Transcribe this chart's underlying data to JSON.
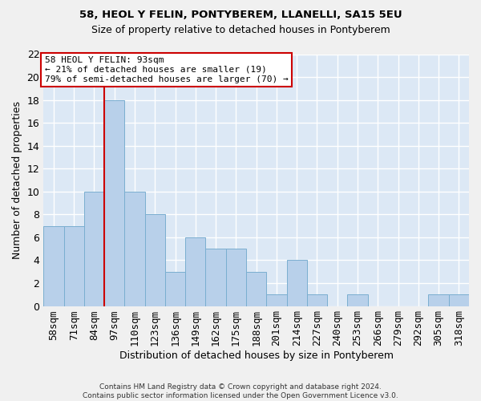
{
  "title1": "58, HEOL Y FELIN, PONTYBEREM, LLANELLI, SA15 5EU",
  "title2": "Size of property relative to detached houses in Pontyberem",
  "xlabel": "Distribution of detached houses by size in Pontyberem",
  "ylabel": "Number of detached properties",
  "categories": [
    "58sqm",
    "71sqm",
    "84sqm",
    "97sqm",
    "110sqm",
    "123sqm",
    "136sqm",
    "149sqm",
    "162sqm",
    "175sqm",
    "188sqm",
    "201sqm",
    "214sqm",
    "227sqm",
    "240sqm",
    "253sqm",
    "266sqm",
    "279sqm",
    "292sqm",
    "305sqm",
    "318sqm"
  ],
  "values": [
    7,
    7,
    10,
    18,
    10,
    8,
    3,
    6,
    5,
    5,
    3,
    1,
    4,
    1,
    0,
    1,
    0,
    0,
    0,
    1,
    1
  ],
  "bar_color": "#b8d0ea",
  "bar_edge_color": "#7aaed0",
  "vline_index": 2.5,
  "vline_color": "#cc0000",
  "annotation_line1": "58 HEOL Y FELIN: 93sqm",
  "annotation_line2": "← 21% of detached houses are smaller (19)",
  "annotation_line3": "79% of semi-detached houses are larger (70) →",
  "annotation_box_color": "#ffffff",
  "annotation_box_edge": "#cc0000",
  "ylim": [
    0,
    22
  ],
  "yticks": [
    0,
    2,
    4,
    6,
    8,
    10,
    12,
    14,
    16,
    18,
    20,
    22
  ],
  "footer": "Contains HM Land Registry data © Crown copyright and database right 2024.\nContains public sector information licensed under the Open Government Licence v3.0.",
  "fig_facecolor": "#f0f0f0",
  "ax_facecolor": "#dce8f5",
  "grid_color": "#ffffff"
}
